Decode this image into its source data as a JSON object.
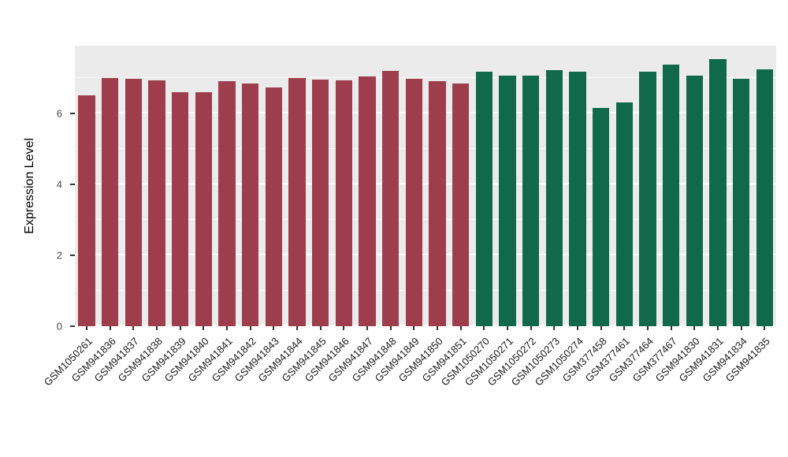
{
  "chart_data": {
    "type": "bar",
    "title": "",
    "xlabel": "",
    "ylabel": "Expression Level",
    "ylim": [
      0,
      7.9
    ],
    "yticks": [
      0,
      2,
      4,
      6
    ],
    "yticks_minor": [
      1,
      3,
      5,
      7
    ],
    "grid": "on",
    "legend_position": "none",
    "panel_background": "#EBEBEB",
    "categories": [
      "GSM1050261",
      "GSM941836",
      "GSM941837",
      "GSM941838",
      "GSM941839",
      "GSM941840",
      "GSM941841",
      "GSM941842",
      "GSM941843",
      "GSM941844",
      "GSM941845",
      "GSM941846",
      "GSM941847",
      "GSM941848",
      "GSM941849",
      "GSM941850",
      "GSM941851",
      "GSM1050270",
      "GSM1050271",
      "GSM1050272",
      "GSM1050273",
      "GSM1050274",
      "GSM377458",
      "GSM377461",
      "GSM377464",
      "GSM377467",
      "GSM941830",
      "GSM941831",
      "GSM941834",
      "GSM941835"
    ],
    "values": [
      6.5,
      7.0,
      6.97,
      6.92,
      6.6,
      6.58,
      6.9,
      6.83,
      6.72,
      6.99,
      6.94,
      6.93,
      7.03,
      7.18,
      6.97,
      6.91,
      6.83,
      7.17,
      7.06,
      7.05,
      7.21,
      7.17,
      6.14,
      6.3,
      7.17,
      7.37,
      7.06,
      7.52,
      6.97,
      7.23
    ],
    "groups": [
      "group1",
      "group1",
      "group1",
      "group1",
      "group1",
      "group1",
      "group1",
      "group1",
      "group1",
      "group1",
      "group1",
      "group1",
      "group1",
      "group1",
      "group1",
      "group1",
      "group1",
      "group2",
      "group2",
      "group2",
      "group2",
      "group2",
      "group2",
      "group2",
      "group2",
      "group2",
      "group2",
      "group2",
      "group2",
      "group2"
    ],
    "colors": {
      "group1": "#9E3E4C",
      "group2": "#11694B"
    }
  }
}
